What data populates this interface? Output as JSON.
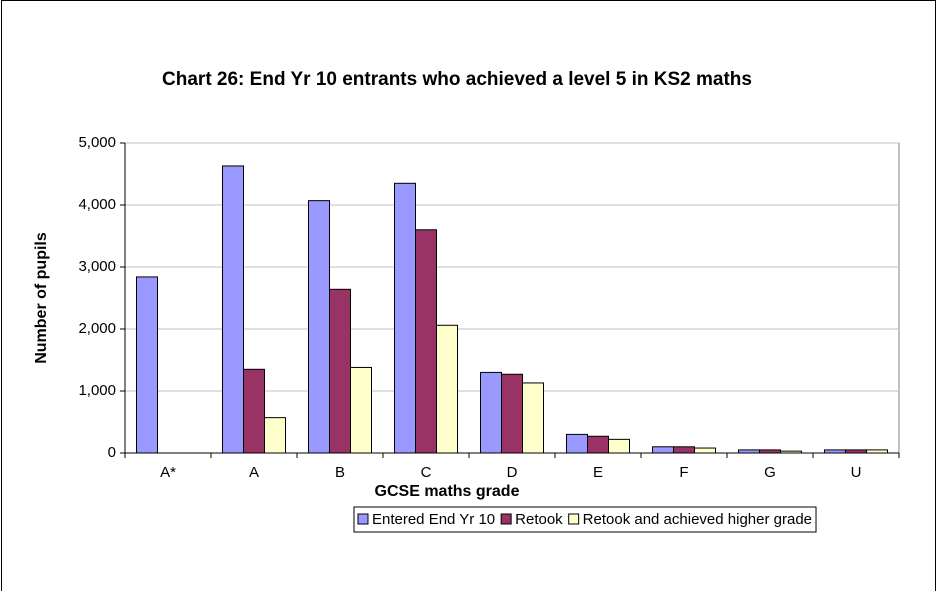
{
  "chart_data": {
    "type": "bar",
    "title": "Chart 26: End Yr 10 entrants who achieved a level 5 in KS2 maths",
    "x_label": "GCSE maths grade",
    "y_label": "Number of pupils",
    "categories": [
      "A*",
      "A",
      "B",
      "C",
      "D",
      "E",
      "F",
      "G",
      "U"
    ],
    "series": [
      {
        "name": "Entered End Yr 10",
        "color": "#9999ff",
        "values": [
          2840,
          4630,
          4070,
          4350,
          1300,
          300,
          100,
          50,
          50
        ]
      },
      {
        "name": "Retook",
        "color": "#993366",
        "values": [
          0,
          1350,
          2640,
          3600,
          1270,
          270,
          100,
          50,
          50
        ]
      },
      {
        "name": "Retook and achieved higher grade",
        "color": "#ffffcc",
        "values": [
          0,
          570,
          1380,
          2060,
          1130,
          220,
          80,
          30,
          50
        ]
      }
    ],
    "ylim": [
      0,
      5000
    ],
    "yticks": [
      0,
      {
        "value": 1000,
        "label": "1,000"
      },
      {
        "value": 2000,
        "label": "2,000"
      },
      {
        "value": 3000,
        "label": "3,000"
      },
      {
        "value": 4000,
        "label": "4,000"
      },
      {
        "value": 5000,
        "label": "5,000"
      }
    ],
    "grid": true,
    "legend": "bottom"
  }
}
